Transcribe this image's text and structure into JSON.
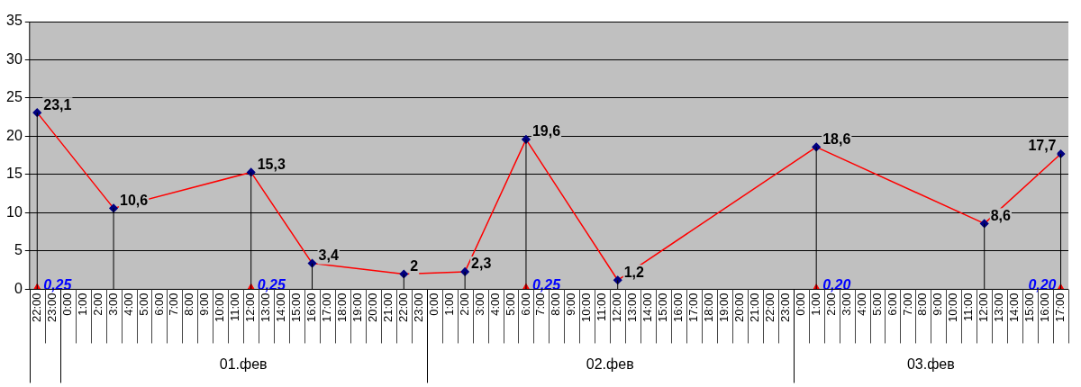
{
  "chart_data": {
    "type": "line",
    "categories": [
      "22:00",
      "23:00",
      "0:00",
      "1:00",
      "2:00",
      "3:00",
      "4:00",
      "5:00",
      "6:00",
      "7:00",
      "8:00",
      "9:00",
      "10:00",
      "11:00",
      "12:00",
      "13:00",
      "14:00",
      "15:00",
      "16:00",
      "17:00",
      "18:00",
      "19:00",
      "20:00",
      "21:00",
      "22:00",
      "23:00",
      "0:00",
      "1:00",
      "2:00",
      "3:00",
      "4:00",
      "5:00",
      "6:00",
      "7:00",
      "8:00",
      "9:00",
      "10:00",
      "11:00",
      "12:00",
      "13:00",
      "14:00",
      "15:00",
      "16:00",
      "17:00",
      "18:00",
      "19:00",
      "20:00",
      "21:00",
      "22:00",
      "23:00",
      "0:00",
      "1:00",
      "2:00",
      "3:00",
      "4:00",
      "5:00",
      "6:00",
      "7:00",
      "8:00",
      "9:00",
      "10:00",
      "11:00",
      "12:00",
      "13:00",
      "14:00",
      "15:00",
      "16:00",
      "17:00"
    ],
    "series": [
      {
        "type": "line",
        "color": "#ff0000",
        "marker": "diamond",
        "values": [
          23.1,
          null,
          null,
          null,
          null,
          10.6,
          null,
          null,
          null,
          null,
          null,
          null,
          null,
          null,
          15.3,
          null,
          null,
          null,
          3.4,
          null,
          null,
          null,
          null,
          null,
          2,
          null,
          null,
          null,
          2.3,
          null,
          null,
          null,
          19.6,
          null,
          null,
          null,
          null,
          null,
          1.2,
          null,
          null,
          null,
          null,
          null,
          null,
          null,
          null,
          null,
          null,
          null,
          null,
          18.6,
          null,
          null,
          null,
          null,
          null,
          null,
          null,
          null,
          null,
          null,
          8.6,
          null,
          null,
          null,
          null,
          17.7
        ],
        "value_labels": [
          "23,1",
          null,
          null,
          null,
          null,
          "10,6",
          null,
          null,
          null,
          null,
          null,
          null,
          null,
          null,
          "15,3",
          null,
          null,
          null,
          "3,4",
          null,
          null,
          null,
          null,
          null,
          "2",
          null,
          null,
          null,
          "2,3",
          null,
          null,
          null,
          "19,6",
          null,
          null,
          null,
          null,
          null,
          "1,2",
          null,
          null,
          null,
          null,
          null,
          null,
          null,
          null,
          null,
          null,
          null,
          null,
          "18,6",
          null,
          null,
          null,
          null,
          null,
          null,
          null,
          null,
          null,
          null,
          "8,6",
          null,
          null,
          null,
          null,
          "17,7"
        ]
      },
      {
        "type": "scatter",
        "color": "#ff0000",
        "marker": "triangle",
        "values": [
          0.25,
          null,
          null,
          null,
          null,
          null,
          null,
          null,
          null,
          null,
          null,
          null,
          null,
          null,
          0.25,
          null,
          null,
          null,
          null,
          null,
          null,
          null,
          null,
          null,
          null,
          null,
          null,
          null,
          null,
          null,
          null,
          null,
          0.25,
          null,
          null,
          null,
          null,
          null,
          null,
          null,
          null,
          null,
          null,
          null,
          null,
          null,
          null,
          null,
          null,
          null,
          null,
          0.2,
          null,
          null,
          null,
          null,
          null,
          null,
          null,
          null,
          null,
          null,
          null,
          null,
          null,
          null,
          null,
          0.2
        ],
        "value_labels": [
          "0,25",
          null,
          null,
          null,
          null,
          null,
          null,
          null,
          null,
          null,
          null,
          null,
          null,
          null,
          "0,25",
          null,
          null,
          null,
          null,
          null,
          null,
          null,
          null,
          null,
          null,
          null,
          null,
          null,
          null,
          null,
          null,
          null,
          "0,25",
          null,
          null,
          null,
          null,
          null,
          null,
          null,
          null,
          null,
          null,
          null,
          null,
          null,
          null,
          null,
          null,
          null,
          null,
          "0,20",
          null,
          null,
          null,
          null,
          null,
          null,
          null,
          null,
          null,
          null,
          null,
          null,
          null,
          null,
          null,
          "0,20"
        ]
      }
    ],
    "annotations": [
      "01.фев",
      "02.фев",
      "03.фев"
    ],
    "ylim": [
      0,
      35
    ],
    "yticks": [
      0,
      5,
      10,
      15,
      20,
      25,
      30,
      35
    ],
    "grid": "y",
    "legend": false
  }
}
